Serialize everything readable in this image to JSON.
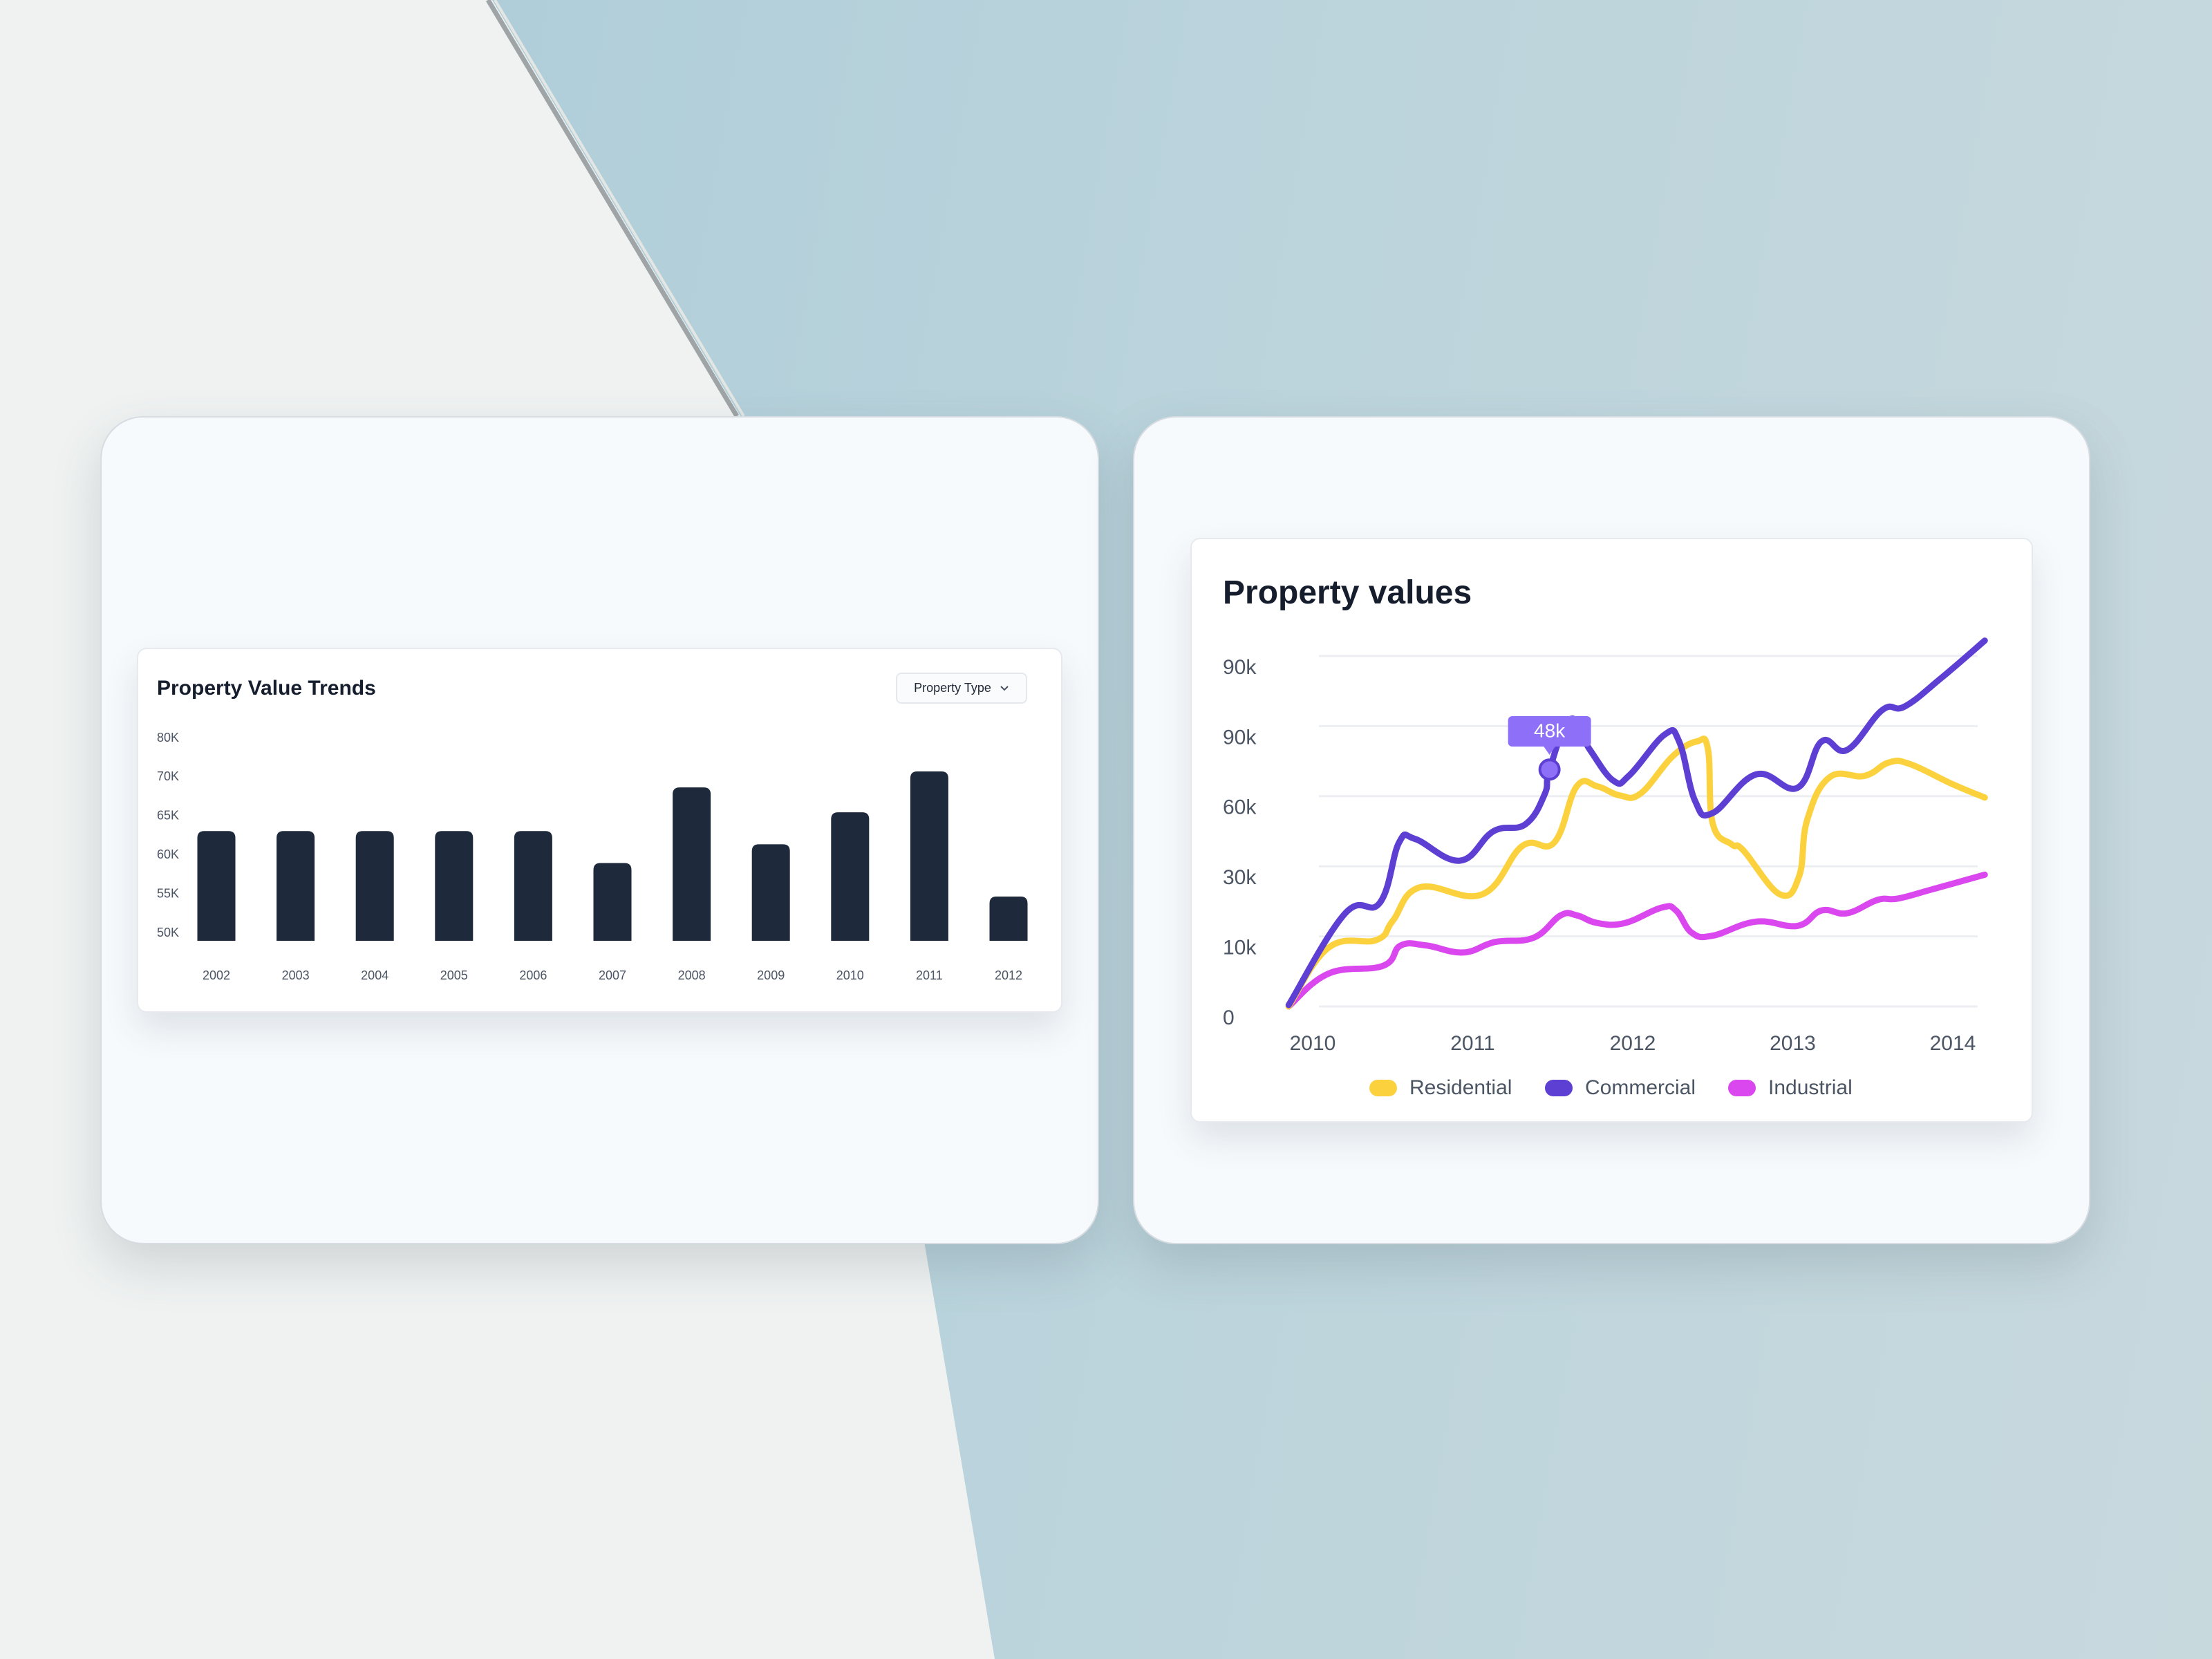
{
  "bar_widget": {
    "title": "Property Value Trends",
    "dropdown_label": "Property Type",
    "dropdown_icon": "chevron-down-icon"
  },
  "line_widget": {
    "title": "Property values"
  },
  "colors": {
    "bar": "#1e293b",
    "residential": "#fbd23e",
    "commercial": "#5e3fd3",
    "industrial": "#da47ef",
    "tooltip": "#8e70f8",
    "grid": "#eceef1"
  },
  "chart_data": [
    {
      "type": "bar",
      "title": "Property Value Trends",
      "categories": [
        "2002",
        "2003",
        "2004",
        "2005",
        "2006",
        "2007",
        "2008",
        "2009",
        "2010",
        "2011",
        "2012"
      ],
      "values": [
        63.1,
        63.1,
        63.1,
        63.1,
        63.1,
        59.0,
        68.7,
        61.4,
        65.5,
        71.5,
        54.7
      ],
      "unit": "K",
      "y_ticks": [
        50,
        55,
        60,
        65,
        70,
        80
      ],
      "y_tick_labels": [
        "50K",
        "55K",
        "60K",
        "65K",
        "70K",
        "80K"
      ],
      "grid": false
    },
    {
      "type": "line",
      "title": "Property values",
      "x_ticks": [
        "2010",
        "2011",
        "2012",
        "2013",
        "2014"
      ],
      "y_tick_labels": [
        "0",
        "10k",
        "30k",
        "60k",
        "90k",
        "90k"
      ],
      "grid": true,
      "legend": "bottom",
      "series": [
        {
          "name": "Residential",
          "color": "#fbd23e",
          "points": [
            [
              2009.85,
              0
            ],
            [
              2010.1,
              0.84
            ],
            [
              2010.4,
              0.95
            ],
            [
              2010.5,
              1.22
            ],
            [
              2010.67,
              1.7
            ],
            [
              2011.06,
              1.6
            ],
            [
              2011.31,
              2.29
            ],
            [
              2011.51,
              2.34
            ],
            [
              2011.65,
              3.14
            ],
            [
              2011.78,
              3.14
            ],
            [
              2011.92,
              3.01
            ],
            [
              2012.05,
              3.04
            ],
            [
              2012.25,
              3.57
            ],
            [
              2012.4,
              3.78
            ],
            [
              2012.47,
              3.67
            ],
            [
              2012.5,
              2.61
            ],
            [
              2012.62,
              2.31
            ],
            [
              2012.69,
              2.23
            ],
            [
              2012.92,
              1.6
            ],
            [
              2013.04,
              1.86
            ],
            [
              2013.09,
              2.66
            ],
            [
              2013.23,
              3.27
            ],
            [
              2013.45,
              3.29
            ],
            [
              2013.6,
              3.48
            ],
            [
              2013.73,
              3.46
            ],
            [
              2014.0,
              3.17
            ],
            [
              2014.2,
              2.98
            ]
          ]
        },
        {
          "name": "Commercial",
          "color": "#5e3fd3",
          "points": [
            [
              2009.85,
              0.02
            ],
            [
              2010.2,
              1.32
            ],
            [
              2010.42,
              1.48
            ],
            [
              2010.54,
              2.34
            ],
            [
              2010.64,
              2.39
            ],
            [
              2010.92,
              2.08
            ],
            [
              2011.13,
              2.5
            ],
            [
              2011.33,
              2.6
            ],
            [
              2011.45,
              3.03
            ],
            [
              2011.48,
              3.38
            ],
            [
              2011.61,
              4.1
            ],
            [
              2011.73,
              3.67
            ],
            [
              2011.88,
              3.22
            ],
            [
              2011.98,
              3.3
            ],
            [
              2012.2,
              3.88
            ],
            [
              2012.29,
              3.78
            ],
            [
              2012.39,
              2.93
            ],
            [
              2012.5,
              2.76
            ],
            [
              2012.77,
              3.31
            ],
            [
              2013.03,
              3.12
            ],
            [
              2013.18,
              3.78
            ],
            [
              2013.34,
              3.66
            ],
            [
              2013.56,
              4.23
            ],
            [
              2013.7,
              4.28
            ],
            [
              2013.93,
              4.69
            ],
            [
              2014.2,
              5.22
            ]
          ]
        },
        {
          "name": "Industrial",
          "color": "#da47ef",
          "points": [
            [
              2009.85,
              0
            ],
            [
              2010.1,
              0.47
            ],
            [
              2010.44,
              0.58
            ],
            [
              2010.55,
              0.87
            ],
            [
              2010.71,
              0.87
            ],
            [
              2010.94,
              0.77
            ],
            [
              2011.14,
              0.92
            ],
            [
              2011.38,
              0.98
            ],
            [
              2011.55,
              1.3
            ],
            [
              2011.65,
              1.3
            ],
            [
              2011.78,
              1.19
            ],
            [
              2011.95,
              1.19
            ],
            [
              2012.18,
              1.41
            ],
            [
              2012.27,
              1.37
            ],
            [
              2012.37,
              1.05
            ],
            [
              2012.5,
              1.01
            ],
            [
              2012.77,
              1.21
            ],
            [
              2013.03,
              1.15
            ],
            [
              2013.18,
              1.37
            ],
            [
              2013.34,
              1.33
            ],
            [
              2013.53,
              1.52
            ],
            [
              2013.66,
              1.54
            ],
            [
              2013.87,
              1.67
            ],
            [
              2014.2,
              1.88
            ]
          ]
        }
      ],
      "tooltip": {
        "label": "48k",
        "series": "Commercial",
        "x": 2011.48,
        "y": 3.38
      }
    }
  ]
}
